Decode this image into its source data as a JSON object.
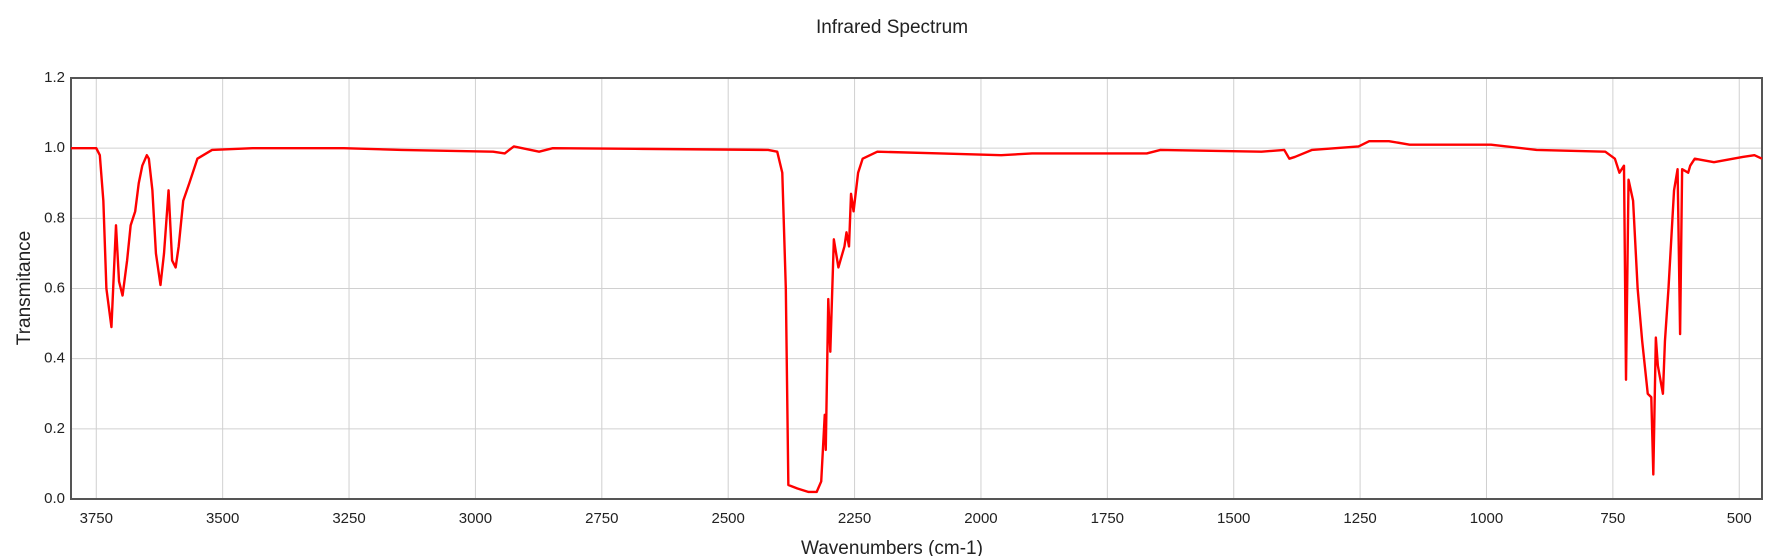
{
  "chart_data": {
    "type": "line",
    "title": "Infrared Spectrum",
    "x_label": "Wavenumbers (cm-1)",
    "y_label": "Transmitance",
    "xlim": [
      3800,
      455
    ],
    "ylim": [
      0,
      1.2
    ],
    "grid": true,
    "xticks": [
      3750,
      3500,
      3250,
      3000,
      2750,
      2500,
      2250,
      2000,
      1750,
      1500,
      1250,
      1000,
      750,
      500
    ],
    "yticks": [
      {
        "value": 0,
        "label": "0.0"
      },
      0.2,
      0.4,
      0.6,
      0.8,
      {
        "value": 1,
        "label": "1.0"
      },
      1.2
    ],
    "series": [
      {
        "name": "Transmitance",
        "color": "#ff0000",
        "x": [
          3800,
          3750,
          3743,
          3736,
          3730,
          3720,
          3711,
          3705,
          3698,
          3689,
          3682,
          3673,
          3666,
          3659,
          3650,
          3646,
          3639,
          3632,
          3623,
          3616,
          3607,
          3600,
          3593,
          3587,
          3578,
          3566,
          3550,
          3521,
          3441,
          3260,
          3147,
          2965,
          2942,
          2924,
          2874,
          2847,
          2670,
          2421,
          2403,
          2393,
          2386,
          2381,
          2363,
          2341,
          2325,
          2316,
          2309,
          2307,
          2302,
          2298,
          2291,
          2282,
          2270,
          2266,
          2261,
          2257,
          2252,
          2243,
          2234,
          2205,
          2080,
          1960,
          1899,
          1672,
          1645,
          1445,
          1400,
          1390,
          1379,
          1345,
          1253,
          1232,
          1193,
          1152,
          1084,
          991,
          901,
          765,
          746,
          737,
          728,
          724,
          719,
          710,
          701,
          692,
          681,
          674,
          670,
          665,
          661,
          651,
          647,
          640,
          629,
          622,
          617,
          613,
          601,
          597,
          588,
          550,
          493,
          470,
          455
        ],
        "values": [
          1.0,
          1.0,
          0.98,
          0.85,
          0.6,
          0.49,
          0.78,
          0.62,
          0.58,
          0.68,
          0.78,
          0.82,
          0.9,
          0.95,
          0.98,
          0.97,
          0.88,
          0.7,
          0.61,
          0.7,
          0.88,
          0.68,
          0.66,
          0.72,
          0.85,
          0.9,
          0.97,
          0.995,
          1.0,
          1.0,
          0.995,
          0.99,
          0.985,
          1.005,
          0.99,
          1.0,
          0.998,
          0.995,
          0.99,
          0.93,
          0.6,
          0.04,
          0.03,
          0.02,
          0.02,
          0.05,
          0.24,
          0.14,
          0.57,
          0.42,
          0.74,
          0.66,
          0.72,
          0.76,
          0.72,
          0.87,
          0.82,
          0.93,
          0.97,
          0.99,
          0.985,
          0.98,
          0.985,
          0.985,
          0.995,
          0.99,
          0.995,
          0.97,
          0.975,
          0.995,
          1.005,
          1.02,
          1.02,
          1.01,
          1.01,
          1.01,
          0.995,
          0.99,
          0.97,
          0.93,
          0.95,
          0.34,
          0.91,
          0.85,
          0.6,
          0.45,
          0.3,
          0.29,
          0.07,
          0.46,
          0.38,
          0.3,
          0.45,
          0.6,
          0.88,
          0.94,
          0.47,
          0.94,
          0.93,
          0.95,
          0.97,
          0.96,
          0.975,
          0.98,
          0.97
        ]
      }
    ]
  }
}
